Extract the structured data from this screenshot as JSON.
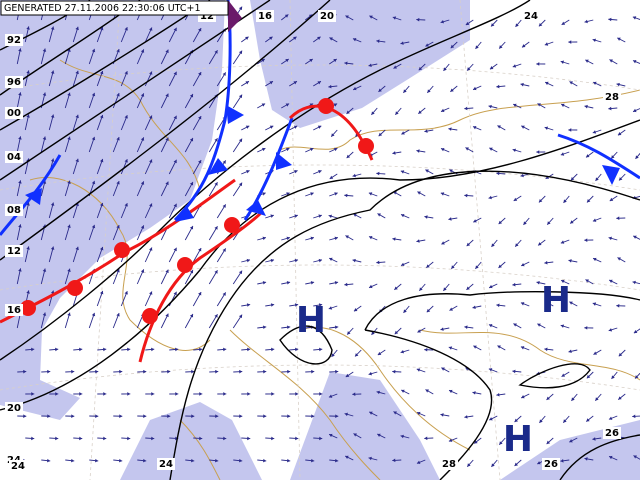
{
  "header": {
    "generated": "GENERATED 27.11.2006 22:30:06 UTC+1"
  },
  "pressure_systems": [
    "H",
    "H",
    "H"
  ],
  "isobar_labels": [
    "92",
    "96",
    "00",
    "04",
    "08",
    "12",
    "16",
    "20",
    "24",
    "12",
    "16",
    "20",
    "24",
    "28",
    "24",
    "24",
    "28",
    "26",
    "26"
  ]
}
